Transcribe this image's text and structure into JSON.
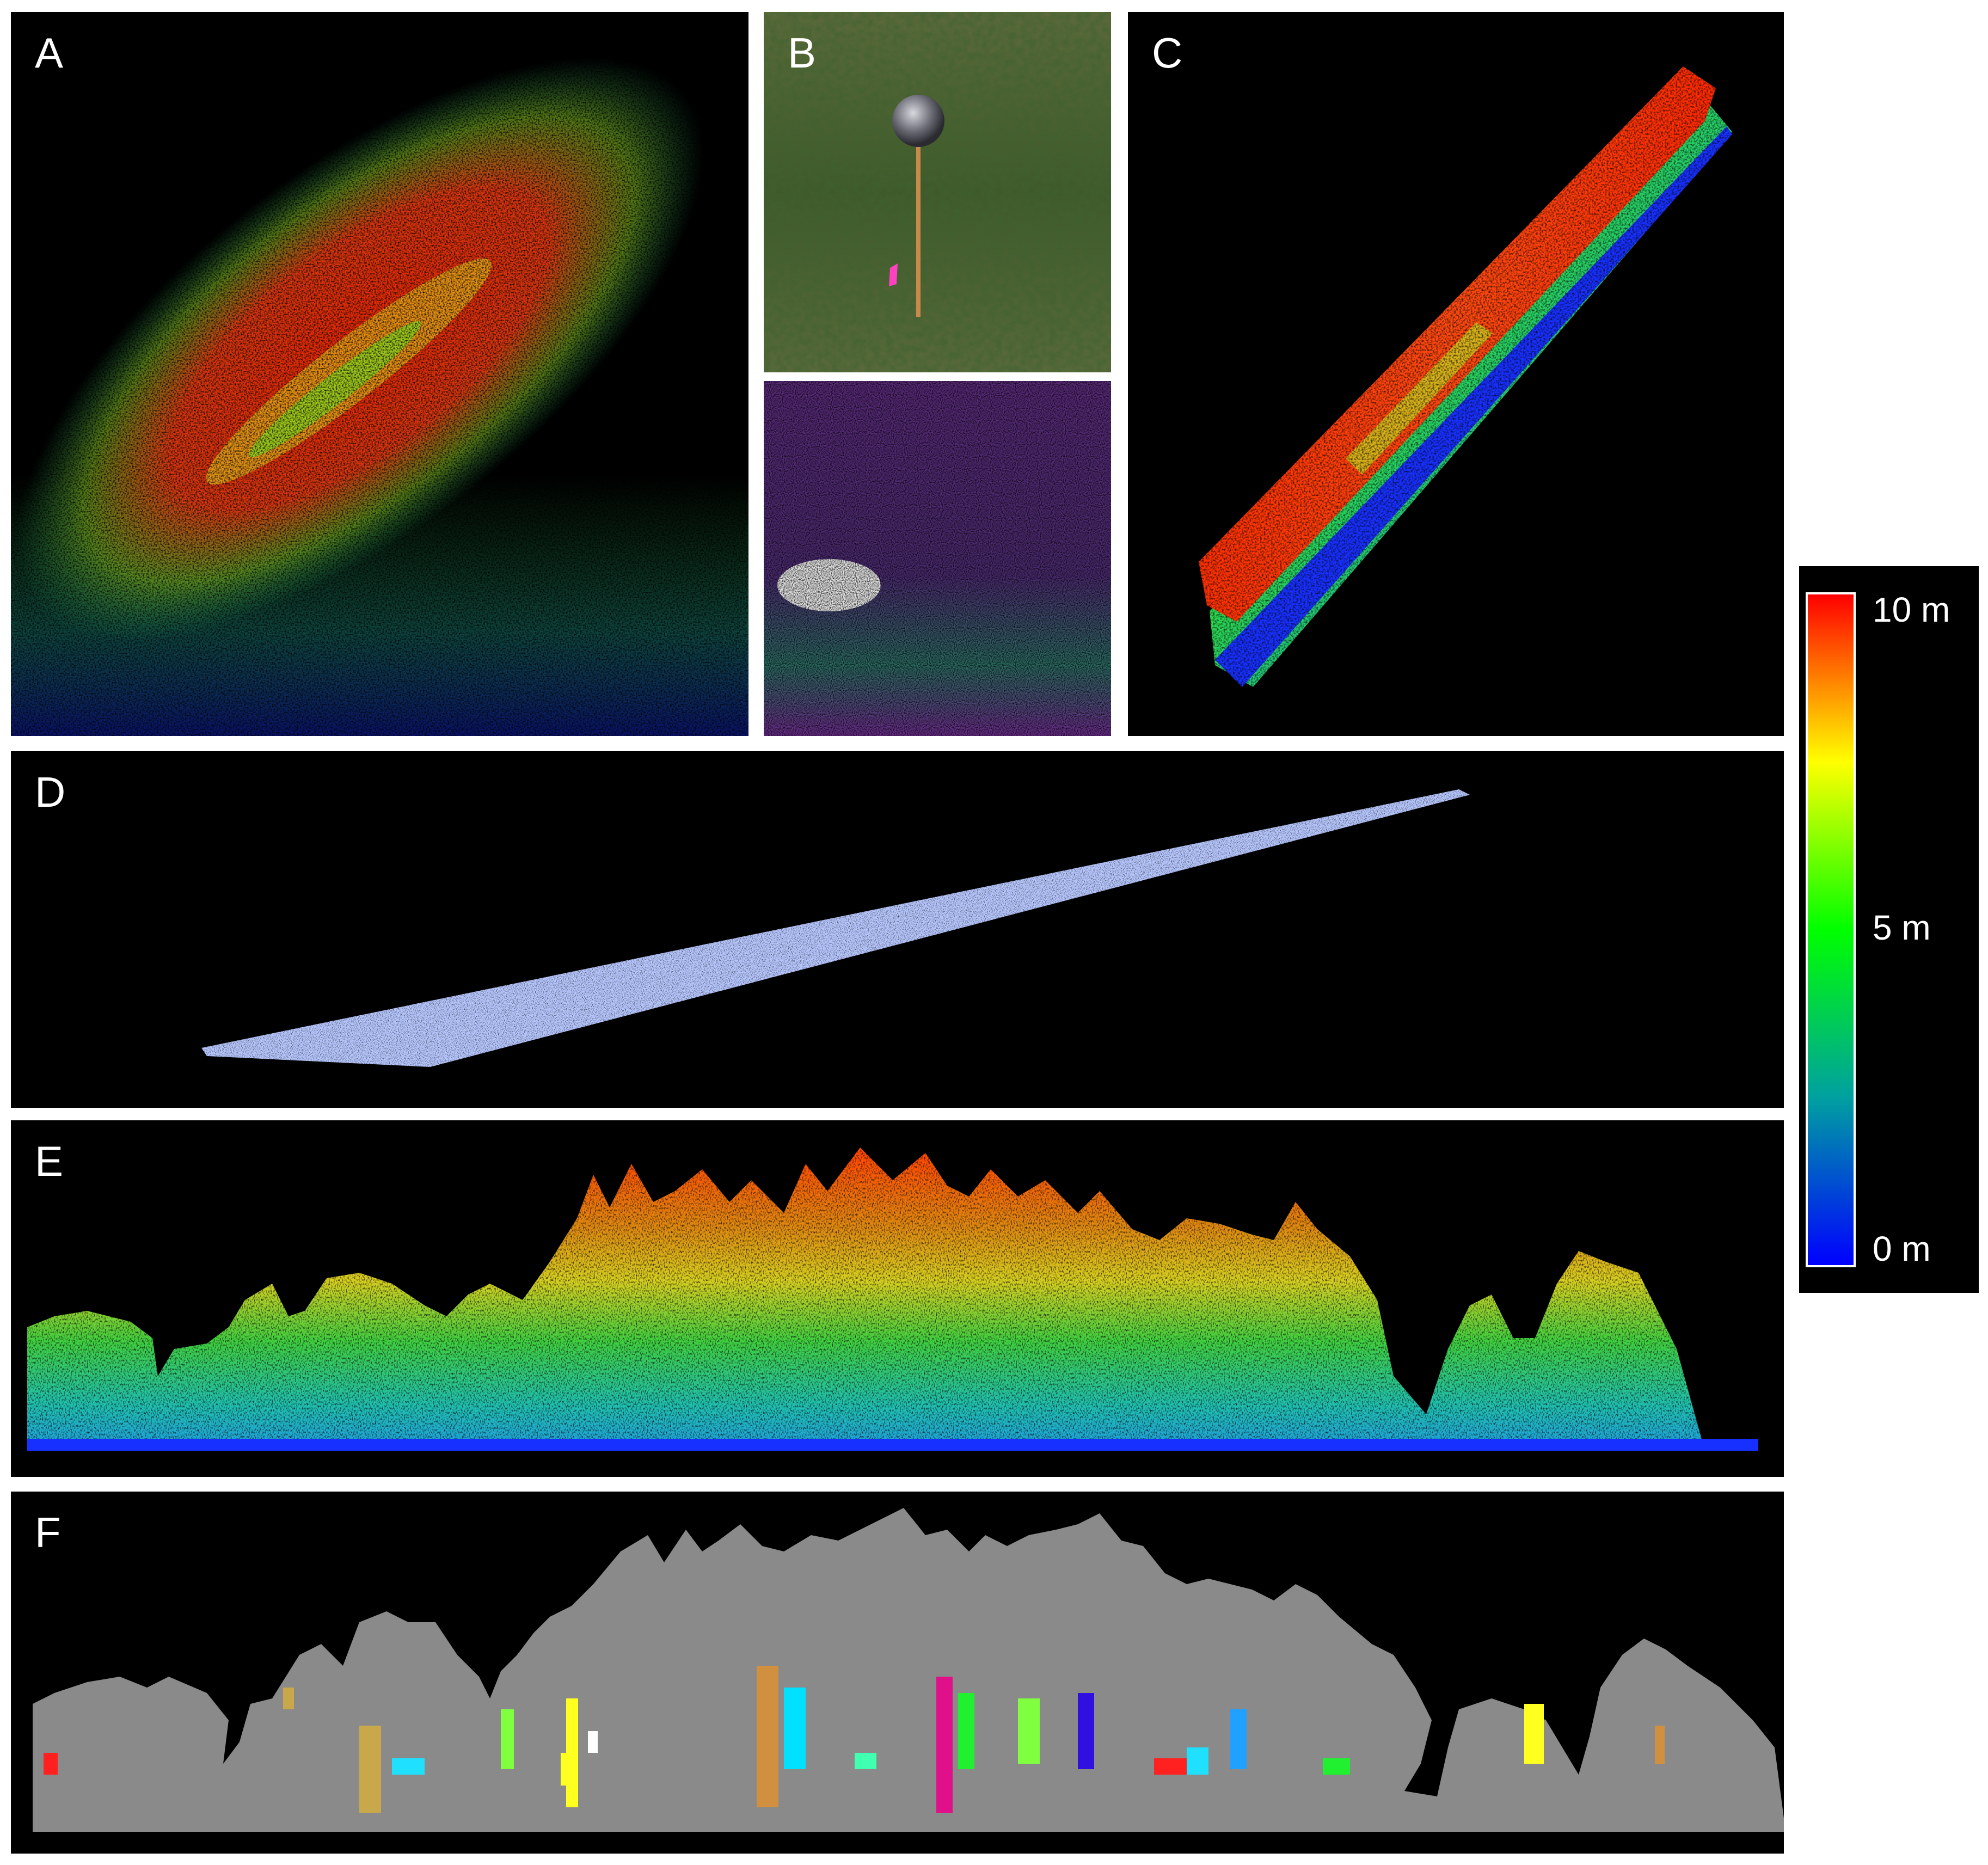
{
  "panels": {
    "a": {
      "label": "A"
    },
    "b": {
      "label": "B"
    },
    "c": {
      "label": "C"
    },
    "d": {
      "label": "D"
    },
    "e": {
      "label": "E"
    },
    "f": {
      "label": "F"
    }
  },
  "legend": {
    "max_label": "10 m",
    "mid_label": "5 m",
    "min_label": "0 m",
    "scale": {
      "min": 0,
      "mid": 5,
      "max": 10,
      "colors": [
        "#0000ff",
        "#00a0a0",
        "#00ff00",
        "#ffff00",
        "#ff0000"
      ]
    }
  },
  "colors": {
    "background": "#000000",
    "ground_points": "#b8c8ff",
    "segmented_canopy": "#8a8a8a"
  }
}
